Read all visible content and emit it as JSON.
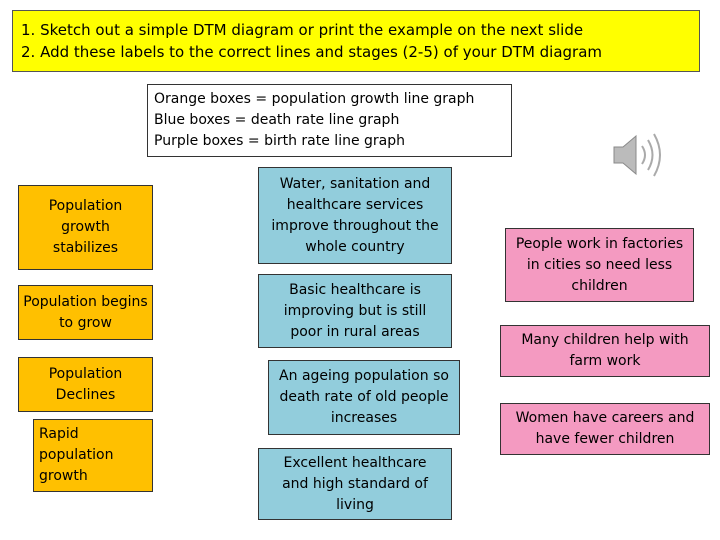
{
  "header": {
    "lines": [
      "1.  Sketch out a simple DTM diagram or print the example on the next slide",
      "2.  Add these labels to the correct lines and stages (2-5) of your DTM diagram"
    ]
  },
  "key": {
    "lines": [
      "Orange boxes = population growth line graph",
      "Blue boxes = death rate line graph",
      "Purple boxes = birth rate line graph"
    ]
  },
  "orange_boxes": [
    "Population growth stabilizes",
    "Population begins to grow",
    "Population Declines",
    "Rapid population growth"
  ],
  "blue_boxes": [
    "Water, sanitation and healthcare services improve throughout the whole country",
    "Basic healthcare is improving but is still poor in rural areas",
    "An ageing population so death rate of old people increases",
    "Excellent healthcare and high standard of living"
  ],
  "pink_boxes": [
    "People work in factories in cities so need less children",
    "Many children help with farm work",
    "Women have careers and have fewer children"
  ]
}
